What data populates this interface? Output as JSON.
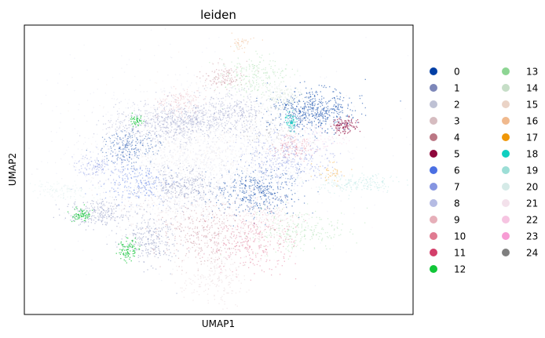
{
  "chart_data": {
    "type": "scatter",
    "title": "leiden",
    "xlabel": "UMAP1",
    "ylabel": "UMAP2",
    "grid": false,
    "show_ticks": false,
    "legend_placement": "right",
    "legend": [
      {
        "label": "0",
        "color": "#023fa5"
      },
      {
        "label": "1",
        "color": "#7d87b9"
      },
      {
        "label": "2",
        "color": "#bec1d4"
      },
      {
        "label": "3",
        "color": "#d6bcc0"
      },
      {
        "label": "4",
        "color": "#bb7784"
      },
      {
        "label": "5",
        "color": "#8e063b"
      },
      {
        "label": "6",
        "color": "#4a6fe3"
      },
      {
        "label": "7",
        "color": "#8595e1"
      },
      {
        "label": "8",
        "color": "#b5bbe3"
      },
      {
        "label": "9",
        "color": "#e6afb9"
      },
      {
        "label": "10",
        "color": "#e07b91"
      },
      {
        "label": "11",
        "color": "#d33f6a"
      },
      {
        "label": "12",
        "color": "#11c638"
      },
      {
        "label": "13",
        "color": "#8dd593"
      },
      {
        "label": "14",
        "color": "#c6dec7"
      },
      {
        "label": "15",
        "color": "#ead3c6"
      },
      {
        "label": "16",
        "color": "#f0b98d"
      },
      {
        "label": "17",
        "color": "#ef9708"
      },
      {
        "label": "18",
        "color": "#0fcfc0"
      },
      {
        "label": "19",
        "color": "#9cded6"
      },
      {
        "label": "20",
        "color": "#d5eae7"
      },
      {
        "label": "21",
        "color": "#f3e1eb"
      },
      {
        "label": "22",
        "color": "#f6c4e1"
      },
      {
        "label": "23",
        "color": "#f79cd4"
      },
      {
        "label": "24",
        "color": "#7f7f7f"
      }
    ]
  }
}
